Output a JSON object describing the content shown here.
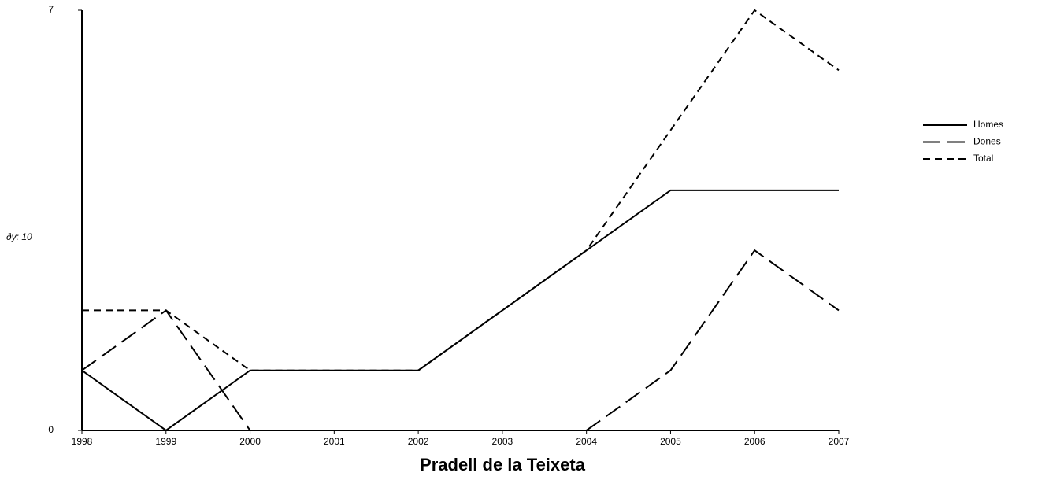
{
  "chart_data": {
    "type": "line",
    "title": "Pradell de la Teixeta",
    "y_label": "ðy: 10",
    "categories": [
      "1998",
      "1999",
      "2000",
      "2001",
      "2002",
      "2003",
      "2004",
      "2005",
      "2006",
      "2007"
    ],
    "series": [
      {
        "name": "Homes",
        "color": "#000000",
        "dash": "solid",
        "values": [
          1,
          0,
          1,
          1,
          1,
          2,
          3,
          4,
          4,
          4
        ]
      },
      {
        "name": "Dones",
        "color": "#000000",
        "dash": "longdash",
        "values": [
          1,
          2,
          0,
          0,
          0,
          0,
          0,
          1,
          3,
          2
        ]
      },
      {
        "name": "Total",
        "color": "#000000",
        "dash": "dash",
        "values": [
          2,
          2,
          1,
          1,
          1,
          2,
          3,
          5,
          7,
          6
        ]
      }
    ],
    "ylim": [
      0,
      7
    ],
    "yticks": [
      0,
      7
    ],
    "grid": false,
    "legend": "right"
  }
}
